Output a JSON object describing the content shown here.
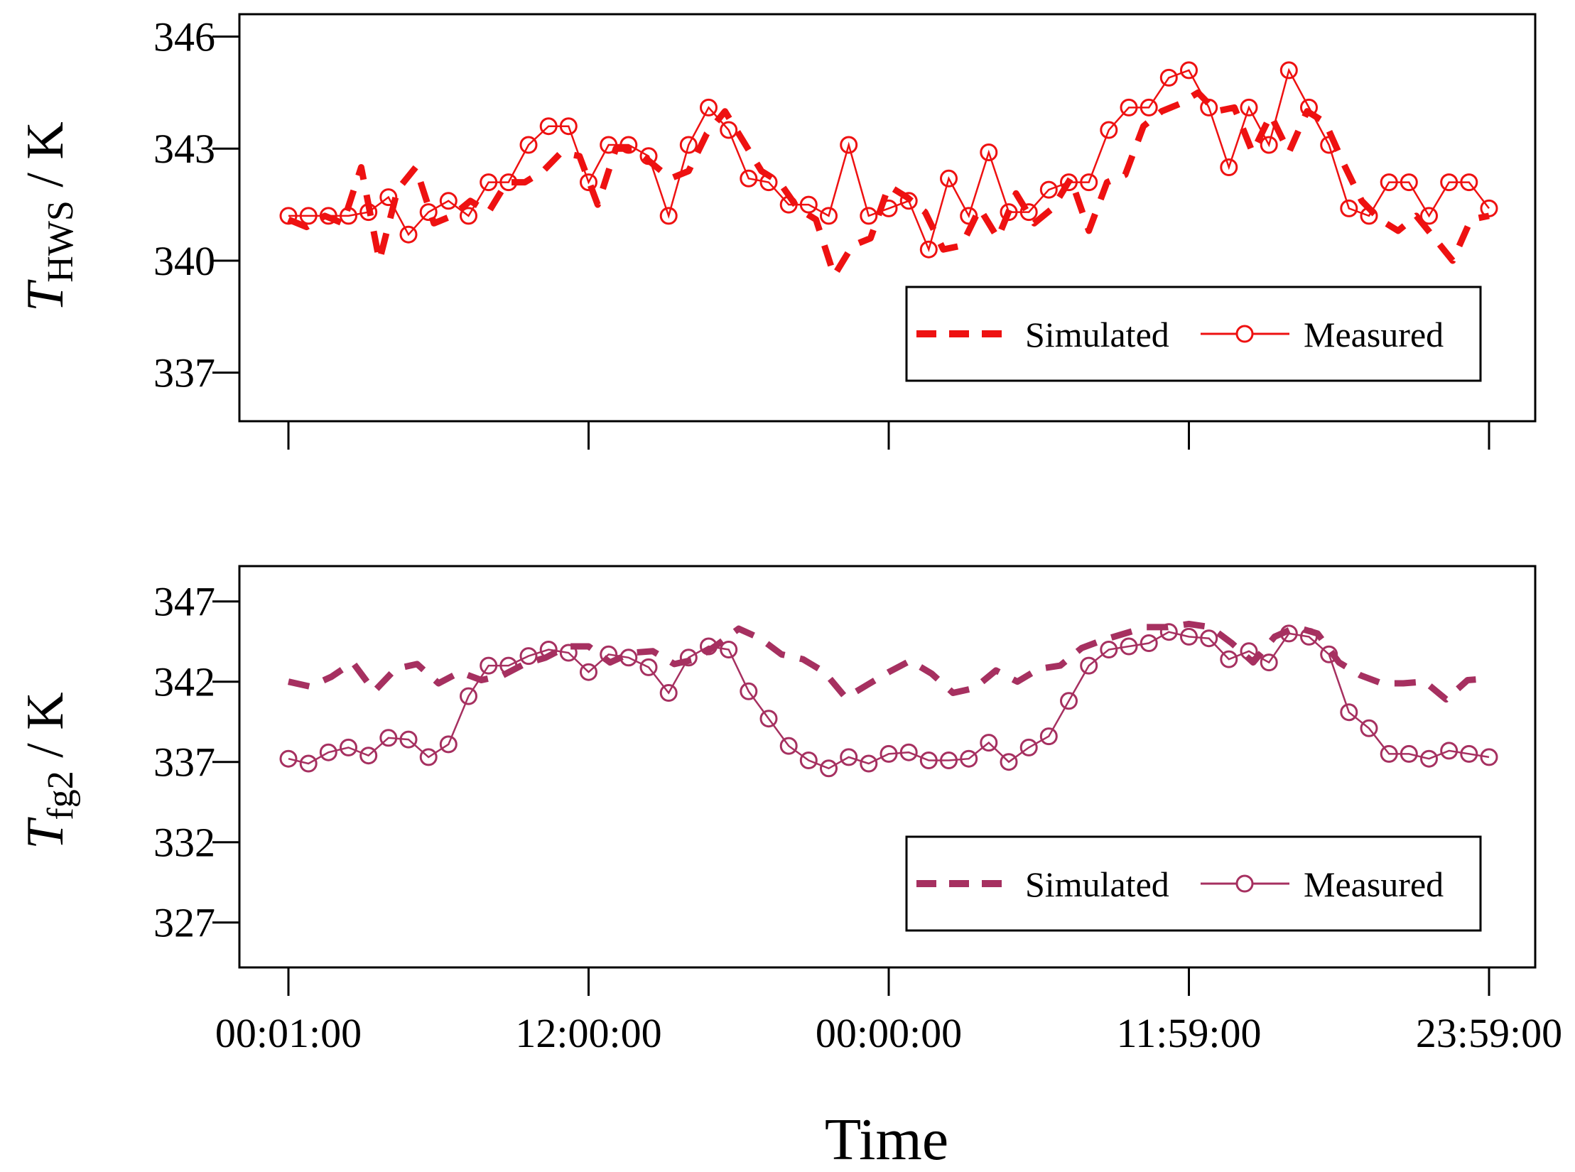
{
  "xlabel": "Time",
  "x_tick_labels": [
    "00:01:00",
    "12:00:00",
    "00:00:00",
    "11:59:00",
    "23:59:00"
  ],
  "chart_data": [
    {
      "type": "line",
      "ylabel": {
        "main": "T",
        "sub": "HWS",
        "unit": " / K"
      },
      "ylim": [
        335.7,
        346.6
      ],
      "yticks": [
        337,
        340,
        343,
        346
      ],
      "ytick_labels": [
        "337",
        "340",
        "343",
        "346"
      ],
      "color": "#ee1111",
      "legend": [
        "Simulated",
        "Measured"
      ],
      "series": [
        {
          "name": "Simulated",
          "style": "dashed",
          "values": [
            341.1,
            340.9,
            341.2,
            341.0,
            342.5,
            340.0,
            341.9,
            342.5,
            341.0,
            341.2,
            341.6,
            341.3,
            342.1,
            342.1,
            342.4,
            342.9,
            342.8,
            341.5,
            343.0,
            343.0,
            342.6,
            342.2,
            342.4,
            343.4,
            344.0,
            343.2,
            342.4,
            342.1,
            341.4,
            341.1,
            339.6,
            340.4,
            340.6,
            342.0,
            341.7,
            341.3,
            340.3,
            340.4,
            341.4,
            340.6,
            341.8,
            341.0,
            341.4,
            342.2,
            340.8,
            342.1,
            342.3,
            343.6,
            344.0,
            344.2,
            344.5,
            344.0,
            344.1,
            342.9,
            343.9,
            342.9,
            344.0,
            343.7,
            342.6,
            341.6,
            341.1,
            340.8,
            341.2,
            340.6,
            340.0,
            341.1,
            341.2
          ]
        },
        {
          "name": "Measured",
          "style": "solid-circles",
          "values": [
            341.2,
            341.2,
            341.2,
            341.2,
            341.3,
            341.7,
            340.7,
            341.3,
            341.6,
            341.2,
            342.1,
            342.1,
            343.1,
            343.6,
            343.6,
            342.1,
            343.1,
            343.1,
            342.8,
            341.2,
            343.1,
            344.1,
            343.5,
            342.2,
            342.1,
            341.5,
            341.5,
            341.2,
            343.1,
            341.2,
            341.4,
            341.6,
            340.3,
            342.2,
            341.2,
            342.9,
            341.3,
            341.3,
            341.9,
            342.1,
            342.1,
            343.5,
            344.1,
            344.1,
            344.9,
            345.1,
            344.1,
            342.5,
            344.1,
            343.1,
            345.1,
            344.1,
            343.1,
            341.4,
            341.2,
            342.1,
            342.1,
            341.2,
            342.1,
            342.1,
            341.4
          ]
        }
      ]
    },
    {
      "type": "line",
      "ylabel": {
        "main": "T",
        "sub": "fg2",
        "unit": " / K"
      },
      "ylim": [
        324.2,
        349.2
      ],
      "yticks": [
        327,
        332,
        337,
        342,
        347
      ],
      "ytick_labels": [
        "327",
        "332",
        "337",
        "342",
        "347"
      ],
      "color": "#a63060",
      "legend": [
        "Simulated",
        "Measured"
      ],
      "series": [
        {
          "name": "Simulated",
          "style": "dashed",
          "values": [
            342.0,
            341.7,
            342.3,
            343.2,
            341.4,
            342.8,
            343.1,
            341.9,
            342.6,
            342.1,
            342.4,
            343.1,
            343.5,
            344.2,
            344.2,
            343.2,
            343.8,
            343.9,
            343.1,
            343.4,
            344.3,
            345.3,
            344.7,
            343.7,
            343.4,
            342.6,
            341.0,
            341.8,
            342.6,
            343.3,
            342.5,
            341.3,
            341.6,
            342.7,
            342.0,
            342.8,
            343.0,
            344.1,
            344.6,
            345.0,
            345.4,
            345.4,
            345.6,
            345.4,
            344.4,
            343.2,
            344.8,
            345.4,
            345.0,
            343.2,
            342.4,
            341.9,
            341.9,
            342.0,
            340.9,
            342.1,
            342.2
          ]
        },
        {
          "name": "Measured",
          "style": "solid-circles",
          "values": [
            337.2,
            336.9,
            337.6,
            337.9,
            337.4,
            338.5,
            338.4,
            337.3,
            338.1,
            341.1,
            343.0,
            343.0,
            343.6,
            344.0,
            343.8,
            342.6,
            343.7,
            343.5,
            342.9,
            341.3,
            343.5,
            344.2,
            344.0,
            341.4,
            339.7,
            338.0,
            337.1,
            336.6,
            337.3,
            336.9,
            337.5,
            337.6,
            337.1,
            337.1,
            337.2,
            338.2,
            337.0,
            337.9,
            338.6,
            340.8,
            343.0,
            344.0,
            344.2,
            344.4,
            345.1,
            344.8,
            344.7,
            343.4,
            343.9,
            343.2,
            345.0,
            344.8,
            343.7,
            340.1,
            339.1,
            337.5,
            337.5,
            337.2,
            337.7,
            337.5,
            337.3
          ]
        }
      ]
    }
  ]
}
